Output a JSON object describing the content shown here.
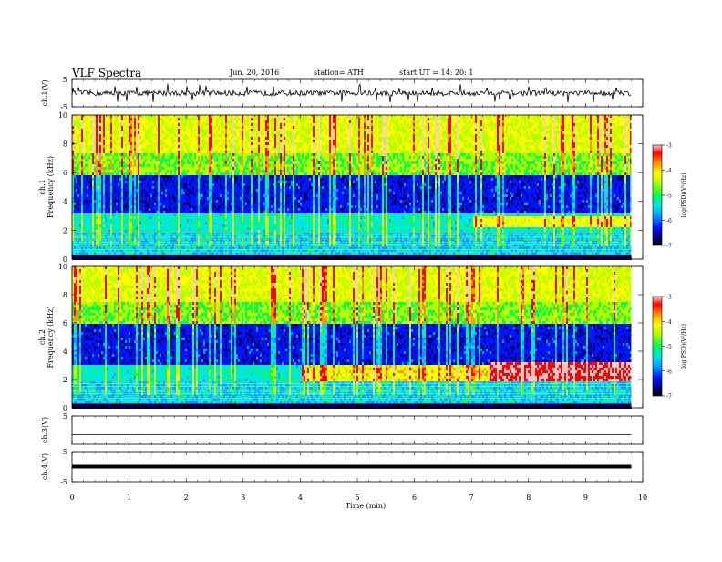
{
  "header": {
    "title": "VLF  Spectra",
    "date": "Jun. 20, 2016",
    "station": "station= ATH",
    "start": "start  UT  =    14: 20: 1"
  },
  "chart_data": [
    {
      "type": "line",
      "panel": "ch1-waveform",
      "ylabel": "ch.1(V)",
      "ylim": [
        -5,
        5
      ],
      "yticks": [
        "5",
        "-5"
      ],
      "baseline": 0,
      "note_color": "#000000"
    },
    {
      "type": "heatmap",
      "panel": "ch1-spectrogram",
      "ylabel": "ch.1\nFrequency  (kHz)",
      "ylim": [
        0,
        10
      ],
      "yticks": [
        "0",
        "2",
        "4",
        "6",
        "8",
        "10"
      ],
      "colorbar": {
        "label": "log(PSD)(V²/Hz)",
        "range": [
          -7,
          -3
        ],
        "ticks": [
          "-3",
          "-4",
          "-5",
          "-6",
          "-7"
        ]
      }
    },
    {
      "type": "heatmap",
      "panel": "ch2-spectrogram",
      "ylabel": "ch.2\nFrequency  (kHz)",
      "ylim": [
        0,
        10
      ],
      "yticks": [
        "0",
        "2",
        "4",
        "6",
        "8",
        "10"
      ],
      "colorbar": {
        "label": "log(PSD)(V²/Hz)",
        "range": [
          -7,
          -3
        ],
        "ticks": [
          "-3",
          "-4",
          "-5",
          "-6",
          "-7"
        ]
      }
    },
    {
      "type": "line",
      "panel": "ch3-waveform",
      "ylabel": "ch.3(V)",
      "ylim": [
        -5,
        5
      ],
      "yticks": [
        "5"
      ],
      "baseline": 0
    },
    {
      "type": "line",
      "panel": "ch4-waveform",
      "ylabel": "ch.4(V)",
      "ylim": [
        -5,
        5
      ],
      "yticks": [
        "5",
        "-5"
      ],
      "baseline": 0
    }
  ],
  "xaxis": {
    "label": "Time  (min)",
    "range": [
      0,
      10
    ],
    "ticks": [
      "0",
      "1",
      "2",
      "3",
      "4",
      "5",
      "6",
      "7",
      "8",
      "9",
      "10"
    ],
    "data_end": 9.8
  },
  "colormap": [
    "#000000",
    "#00007a",
    "#0014ff",
    "#00a0ff",
    "#00e6e6",
    "#00ff50",
    "#b4ff00",
    "#ffff00",
    "#ff9600",
    "#ff0000",
    "#ffc8c8"
  ]
}
